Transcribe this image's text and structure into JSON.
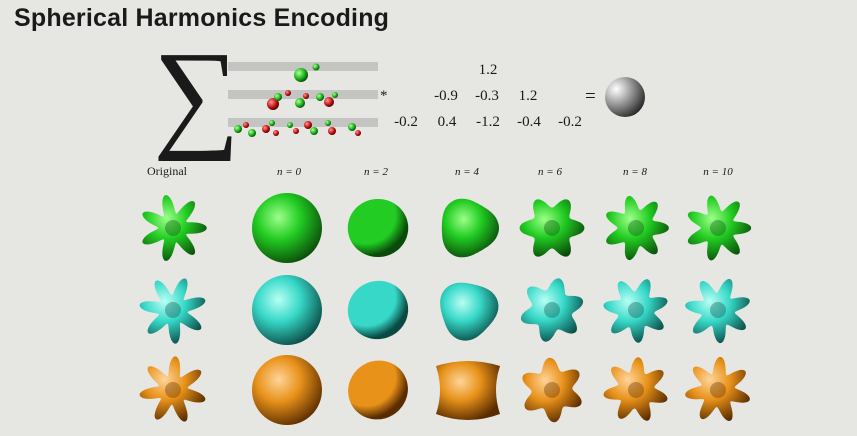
{
  "title": "Spherical Harmonics Encoding",
  "formula": {
    "sum_symbol": "∑",
    "multiply_symbol": "*",
    "equals_symbol": "=",
    "coefficients": [
      [
        "1.2"
      ],
      [
        "-0.9",
        "-0.3",
        "1.2"
      ],
      [
        "-0.2",
        "0.4",
        "-1.2",
        "-0.4",
        "-0.2"
      ]
    ]
  },
  "column_labels": [
    "Original",
    "n = 0",
    "n = 2",
    "n = 4",
    "n = 6",
    "n = 8",
    "n = 10"
  ],
  "rows": [
    {
      "name": "green",
      "color": "#22cc22",
      "shade": "#0a4a0a",
      "highlight": "#9dff8a"
    },
    {
      "name": "cyan",
      "color": "#37d8c8",
      "shade": "#0a4a44",
      "highlight": "#b8fff4"
    },
    {
      "name": "orange",
      "color": "#e8921a",
      "shade": "#5a2c00",
      "highlight": "#ffd49a"
    }
  ],
  "icons": {
    "basis_functions": "sh-basis-icon",
    "result": "shaded-sphere-icon"
  }
}
